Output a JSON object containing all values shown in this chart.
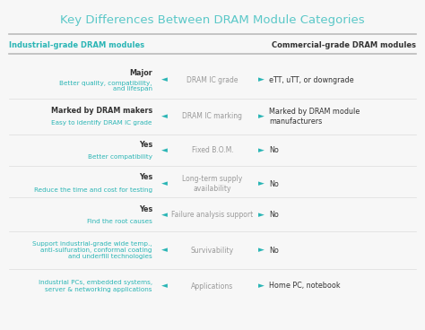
{
  "title": "Key Differences Between DRAM Module Categories",
  "title_color": "#5bc8c8",
  "title_fontsize": 9.5,
  "left_header": "Industrial-grade DRAM modules",
  "right_header": "Commercial-grade DRAM modules",
  "header_color_left": "#2ab5b5",
  "header_color_right": "#333333",
  "bg_color": "#f7f7f7",
  "rows": [
    {
      "center": "DRAM IC grade",
      "left_bold": "Major",
      "left_cyan": "Better quality, compatibility,\nand lifespan",
      "right": "eTT, uTT, or downgrade"
    },
    {
      "center": "DRAM IC marking",
      "left_bold": "Marked by DRAM makers",
      "left_cyan": "Easy to identify DRAM IC grade",
      "right": "Marked by DRAM module\nmanufacturers"
    },
    {
      "center": "Fixed B.O.M.",
      "left_bold": "Yes",
      "left_cyan": "Better compatibility",
      "right": "No"
    },
    {
      "center": "Long-term supply\navailability",
      "left_bold": "Yes",
      "left_cyan": "Reduce the time and cost for testing",
      "right": "No"
    },
    {
      "center": "Failure analysis support",
      "left_bold": "Yes",
      "left_cyan": "Find the root causes",
      "right": "No"
    },
    {
      "center": "Survivability",
      "left_bold": "",
      "left_cyan": "Support industrial-grade wide temp.,\nanti-sulfuration, conformal coating\nand underfill technologies",
      "right": "No"
    },
    {
      "center": "Applications",
      "left_bold": "",
      "left_cyan": "Industrial PCs, embedded systems,\nserver & networking applications",
      "right": "Home PC, notebook"
    }
  ],
  "arrow_color": "#2ab5b5",
  "center_text_color": "#999999",
  "right_bold_color": "#333333",
  "right_cyan_color": "#2ab5b5",
  "separator_color": "#bbbbbb",
  "thin_sep_color": "#dddddd"
}
